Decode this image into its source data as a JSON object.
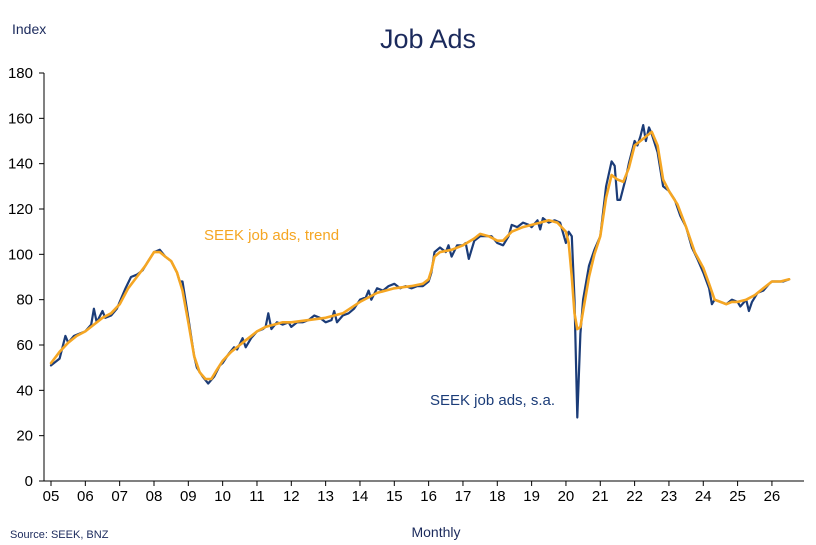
{
  "chart_data": {
    "type": "line",
    "title": "Job Ads",
    "ylabel": "Index",
    "xlabel": "Monthly",
    "source": "Source: SEEK, BNZ",
    "ylim": [
      0,
      180
    ],
    "yticks": [
      "0",
      "20",
      "40",
      "60",
      "80",
      "100",
      "120",
      "140",
      "160",
      "180"
    ],
    "xlim": [
      2005,
      2026.5
    ],
    "xticks": [
      "05",
      "06",
      "07",
      "08",
      "09",
      "10",
      "11",
      "12",
      "13",
      "14",
      "15",
      "16",
      "17",
      "18",
      "19",
      "20",
      "21",
      "22",
      "23",
      "24",
      "25",
      "26"
    ],
    "grid": false,
    "colors": {
      "sa": "#1b3c78",
      "trend": "#f5a623",
      "axis": "#000000",
      "title": "#1b2a5c"
    },
    "annotations": [
      {
        "text": "SEEK job ads, trend",
        "series": "trend"
      },
      {
        "text": "SEEK job ads, s.a.",
        "series": "sa"
      }
    ],
    "series": [
      {
        "name": "SEEK job ads, s.a.",
        "key": "sa",
        "points": [
          [
            2005.0,
            51
          ],
          [
            2005.25,
            54
          ],
          [
            2005.42,
            64
          ],
          [
            2005.5,
            61
          ],
          [
            2005.67,
            64
          ],
          [
            2005.83,
            65
          ],
          [
            2006.0,
            66
          ],
          [
            2006.17,
            69
          ],
          [
            2006.25,
            76
          ],
          [
            2006.33,
            70
          ],
          [
            2006.5,
            75
          ],
          [
            2006.58,
            72
          ],
          [
            2006.75,
            73
          ],
          [
            2006.92,
            76
          ],
          [
            2007.0,
            79
          ],
          [
            2007.17,
            85
          ],
          [
            2007.33,
            90
          ],
          [
            2007.5,
            91
          ],
          [
            2007.67,
            93
          ],
          [
            2007.83,
            97
          ],
          [
            2008.0,
            101
          ],
          [
            2008.17,
            102
          ],
          [
            2008.33,
            99
          ],
          [
            2008.5,
            97
          ],
          [
            2008.67,
            92
          ],
          [
            2008.75,
            88
          ],
          [
            2008.83,
            88
          ],
          [
            2009.0,
            72
          ],
          [
            2009.17,
            55
          ],
          [
            2009.25,
            50
          ],
          [
            2009.42,
            46
          ],
          [
            2009.58,
            43
          ],
          [
            2009.75,
            46
          ],
          [
            2009.92,
            51
          ],
          [
            2010.0,
            52
          ],
          [
            2010.17,
            56
          ],
          [
            2010.33,
            59
          ],
          [
            2010.42,
            58
          ],
          [
            2010.58,
            63
          ],
          [
            2010.67,
            59
          ],
          [
            2010.83,
            63
          ],
          [
            2011.0,
            66
          ],
          [
            2011.17,
            67
          ],
          [
            2011.25,
            68
          ],
          [
            2011.33,
            74
          ],
          [
            2011.42,
            67
          ],
          [
            2011.58,
            70
          ],
          [
            2011.75,
            69
          ],
          [
            2011.92,
            70
          ],
          [
            2012.0,
            68
          ],
          [
            2012.17,
            70
          ],
          [
            2012.33,
            70
          ],
          [
            2012.5,
            71
          ],
          [
            2012.67,
            73
          ],
          [
            2012.83,
            72
          ],
          [
            2013.0,
            70
          ],
          [
            2013.17,
            71
          ],
          [
            2013.25,
            75
          ],
          [
            2013.33,
            70
          ],
          [
            2013.5,
            73
          ],
          [
            2013.67,
            74
          ],
          [
            2013.83,
            76
          ],
          [
            2014.0,
            80
          ],
          [
            2014.17,
            81
          ],
          [
            2014.25,
            84
          ],
          [
            2014.33,
            80
          ],
          [
            2014.5,
            85
          ],
          [
            2014.67,
            84
          ],
          [
            2014.83,
            86
          ],
          [
            2015.0,
            87
          ],
          [
            2015.17,
            85
          ],
          [
            2015.33,
            86
          ],
          [
            2015.5,
            85
          ],
          [
            2015.67,
            86
          ],
          [
            2015.83,
            86
          ],
          [
            2016.0,
            88
          ],
          [
            2016.08,
            92
          ],
          [
            2016.17,
            101
          ],
          [
            2016.33,
            103
          ],
          [
            2016.5,
            101
          ],
          [
            2016.58,
            104
          ],
          [
            2016.67,
            99
          ],
          [
            2016.83,
            104
          ],
          [
            2017.0,
            104
          ],
          [
            2017.08,
            105
          ],
          [
            2017.17,
            98
          ],
          [
            2017.33,
            106
          ],
          [
            2017.5,
            108
          ],
          [
            2017.67,
            108
          ],
          [
            2017.83,
            108
          ],
          [
            2018.0,
            105
          ],
          [
            2018.17,
            104
          ],
          [
            2018.33,
            108
          ],
          [
            2018.42,
            113
          ],
          [
            2018.58,
            112
          ],
          [
            2018.75,
            114
          ],
          [
            2018.92,
            113
          ],
          [
            2019.0,
            112
          ],
          [
            2019.17,
            115
          ],
          [
            2019.25,
            111
          ],
          [
            2019.33,
            116
          ],
          [
            2019.5,
            114
          ],
          [
            2019.67,
            115
          ],
          [
            2019.83,
            114
          ],
          [
            2020.0,
            105
          ],
          [
            2020.08,
            110
          ],
          [
            2020.17,
            108
          ],
          [
            2020.25,
            80
          ],
          [
            2020.33,
            28
          ],
          [
            2020.42,
            65
          ],
          [
            2020.5,
            80
          ],
          [
            2020.67,
            95
          ],
          [
            2020.83,
            102
          ],
          [
            2021.0,
            108
          ],
          [
            2021.17,
            130
          ],
          [
            2021.33,
            141
          ],
          [
            2021.42,
            139
          ],
          [
            2021.5,
            124
          ],
          [
            2021.58,
            124
          ],
          [
            2021.75,
            134
          ],
          [
            2021.83,
            140
          ],
          [
            2022.0,
            150
          ],
          [
            2022.08,
            148
          ],
          [
            2022.17,
            152
          ],
          [
            2022.25,
            157
          ],
          [
            2022.33,
            150
          ],
          [
            2022.42,
            156
          ],
          [
            2022.5,
            153
          ],
          [
            2022.67,
            145
          ],
          [
            2022.83,
            130
          ],
          [
            2023.0,
            128
          ],
          [
            2023.17,
            124
          ],
          [
            2023.33,
            117
          ],
          [
            2023.5,
            112
          ],
          [
            2023.67,
            103
          ],
          [
            2023.83,
            98
          ],
          [
            2024.0,
            92
          ],
          [
            2024.17,
            85
          ],
          [
            2024.25,
            78
          ],
          [
            2024.33,
            80
          ],
          [
            2024.5,
            79
          ],
          [
            2024.67,
            78
          ],
          [
            2024.83,
            80
          ],
          [
            2025.0,
            79
          ],
          [
            2025.08,
            77
          ],
          [
            2025.25,
            80
          ],
          [
            2025.33,
            75
          ],
          [
            2025.42,
            79
          ],
          [
            2025.58,
            83
          ],
          [
            2025.75,
            84
          ],
          [
            2025.92,
            87
          ],
          [
            2026.0,
            88
          ],
          [
            2026.17,
            88
          ],
          [
            2026.33,
            88
          ],
          [
            2026.5,
            89
          ]
        ]
      },
      {
        "name": "SEEK job ads, trend",
        "key": "trend",
        "points": [
          [
            2005.0,
            52
          ],
          [
            2005.25,
            57
          ],
          [
            2005.5,
            61
          ],
          [
            2005.75,
            64
          ],
          [
            2006.0,
            66
          ],
          [
            2006.25,
            69
          ],
          [
            2006.5,
            72
          ],
          [
            2006.75,
            74
          ],
          [
            2007.0,
            78
          ],
          [
            2007.25,
            85
          ],
          [
            2007.5,
            90
          ],
          [
            2007.75,
            95
          ],
          [
            2008.0,
            101
          ],
          [
            2008.17,
            101
          ],
          [
            2008.33,
            99
          ],
          [
            2008.5,
            97
          ],
          [
            2008.67,
            92
          ],
          [
            2008.83,
            84
          ],
          [
            2009.0,
            70
          ],
          [
            2009.17,
            55
          ],
          [
            2009.33,
            48
          ],
          [
            2009.5,
            45
          ],
          [
            2009.67,
            45
          ],
          [
            2009.83,
            49
          ],
          [
            2010.0,
            53
          ],
          [
            2010.25,
            57
          ],
          [
            2010.5,
            60
          ],
          [
            2010.75,
            63
          ],
          [
            2011.0,
            66
          ],
          [
            2011.25,
            68
          ],
          [
            2011.5,
            69
          ],
          [
            2011.75,
            70
          ],
          [
            2012.0,
            70
          ],
          [
            2012.5,
            71
          ],
          [
            2013.0,
            72
          ],
          [
            2013.5,
            74
          ],
          [
            2014.0,
            79
          ],
          [
            2014.5,
            83
          ],
          [
            2015.0,
            85
          ],
          [
            2015.5,
            86
          ],
          [
            2015.83,
            87
          ],
          [
            2016.0,
            89
          ],
          [
            2016.08,
            93
          ],
          [
            2016.17,
            99
          ],
          [
            2016.33,
            101
          ],
          [
            2016.67,
            102
          ],
          [
            2017.0,
            104
          ],
          [
            2017.33,
            107
          ],
          [
            2017.5,
            109
          ],
          [
            2017.75,
            108
          ],
          [
            2018.0,
            106
          ],
          [
            2018.17,
            106
          ],
          [
            2018.42,
            110
          ],
          [
            2018.75,
            112
          ],
          [
            2019.0,
            113
          ],
          [
            2019.25,
            114
          ],
          [
            2019.5,
            115
          ],
          [
            2019.75,
            114
          ],
          [
            2020.0,
            110
          ],
          [
            2020.08,
            105
          ],
          [
            2020.17,
            90
          ],
          [
            2020.25,
            74
          ],
          [
            2020.33,
            67
          ],
          [
            2020.42,
            68
          ],
          [
            2020.5,
            75
          ],
          [
            2020.67,
            90
          ],
          [
            2020.83,
            100
          ],
          [
            2021.0,
            108
          ],
          [
            2021.17,
            125
          ],
          [
            2021.33,
            135
          ],
          [
            2021.5,
            133
          ],
          [
            2021.67,
            132
          ],
          [
            2021.83,
            138
          ],
          [
            2022.0,
            148
          ],
          [
            2022.17,
            150
          ],
          [
            2022.33,
            152
          ],
          [
            2022.5,
            154
          ],
          [
            2022.67,
            148
          ],
          [
            2022.83,
            133
          ],
          [
            2023.0,
            128
          ],
          [
            2023.25,
            122
          ],
          [
            2023.5,
            112
          ],
          [
            2023.75,
            101
          ],
          [
            2024.0,
            94
          ],
          [
            2024.17,
            87
          ],
          [
            2024.33,
            80
          ],
          [
            2024.5,
            79
          ],
          [
            2024.67,
            78
          ],
          [
            2024.83,
            79
          ],
          [
            2025.0,
            79
          ],
          [
            2025.25,
            80
          ],
          [
            2025.5,
            82
          ],
          [
            2025.75,
            85
          ],
          [
            2026.0,
            88
          ],
          [
            2026.25,
            88
          ],
          [
            2026.5,
            89
          ]
        ]
      }
    ]
  }
}
